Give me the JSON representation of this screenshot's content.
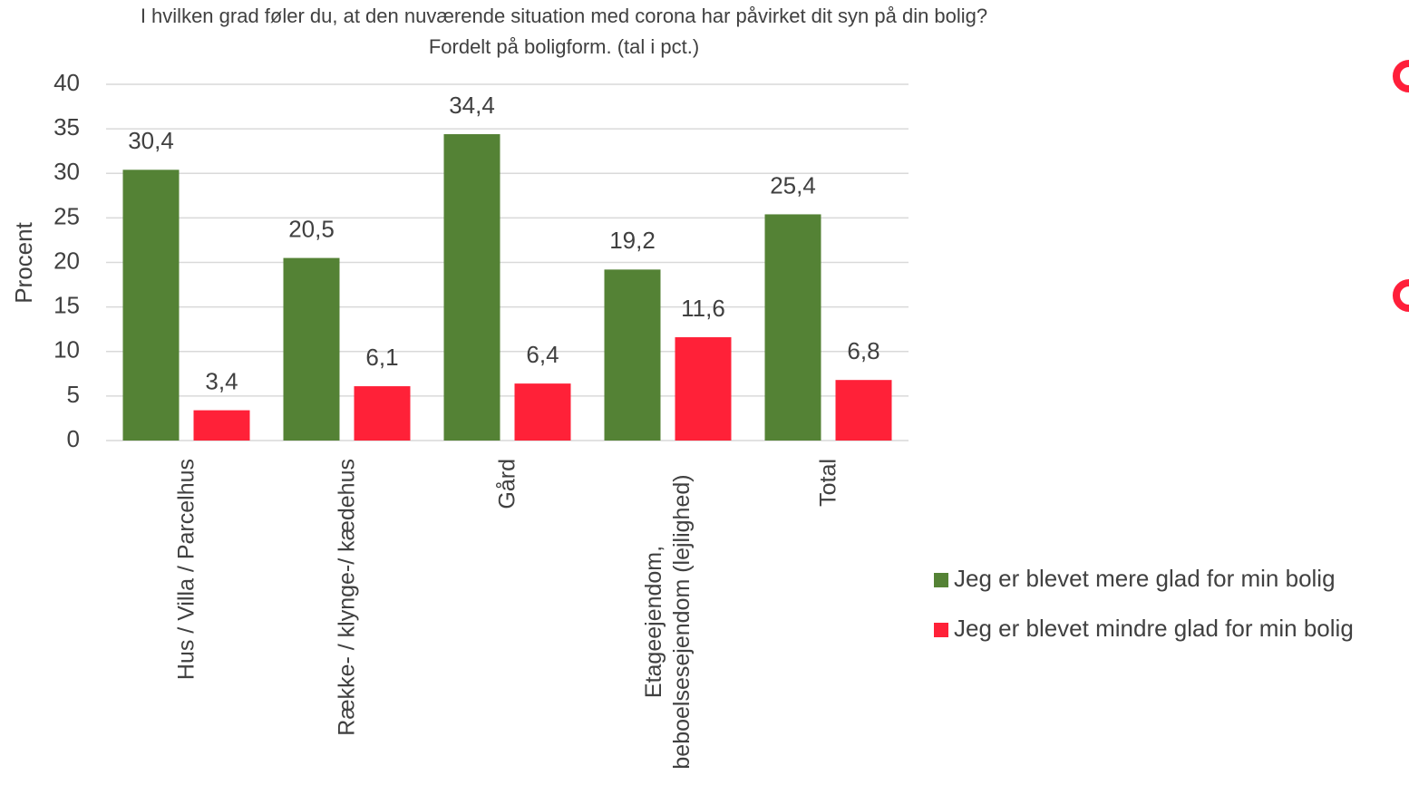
{
  "chart_data": {
    "type": "bar",
    "title": [
      "I hvilken grad føler du, at den nuværende situation med corona har påvirket dit syn på din bolig?",
      "Fordelt på boligform. (tal i pct.)"
    ],
    "ylabel": "Procent",
    "categories": [
      "Hus / Villa / Parcelhus",
      "Række- / klynge-/ kædehus",
      "Gård",
      "Etageejendom, beboelsesejendom (lejlighed)",
      "Total"
    ],
    "series": [
      {
        "name": "Jeg er blevet mere glad for min bolig",
        "color": "#548235",
        "values": [
          30.4,
          20.5,
          34.4,
          19.2,
          25.4
        ],
        "value_labels": [
          "30,4",
          "20,5",
          "34,4",
          "19,2",
          "25,4"
        ]
      },
      {
        "name": "Jeg er blevet mindre glad for min bolig",
        "color": "#ff2138",
        "values": [
          3.4,
          6.1,
          6.4,
          11.6,
          6.8
        ],
        "value_labels": [
          "3,4",
          "6,1",
          "6,4",
          "11,6",
          "6,8"
        ]
      }
    ],
    "ylim": [
      0,
      40
    ],
    "yticks": [
      0,
      5,
      10,
      15,
      20,
      25,
      30,
      35,
      40
    ],
    "grid": true,
    "legend": "right"
  }
}
